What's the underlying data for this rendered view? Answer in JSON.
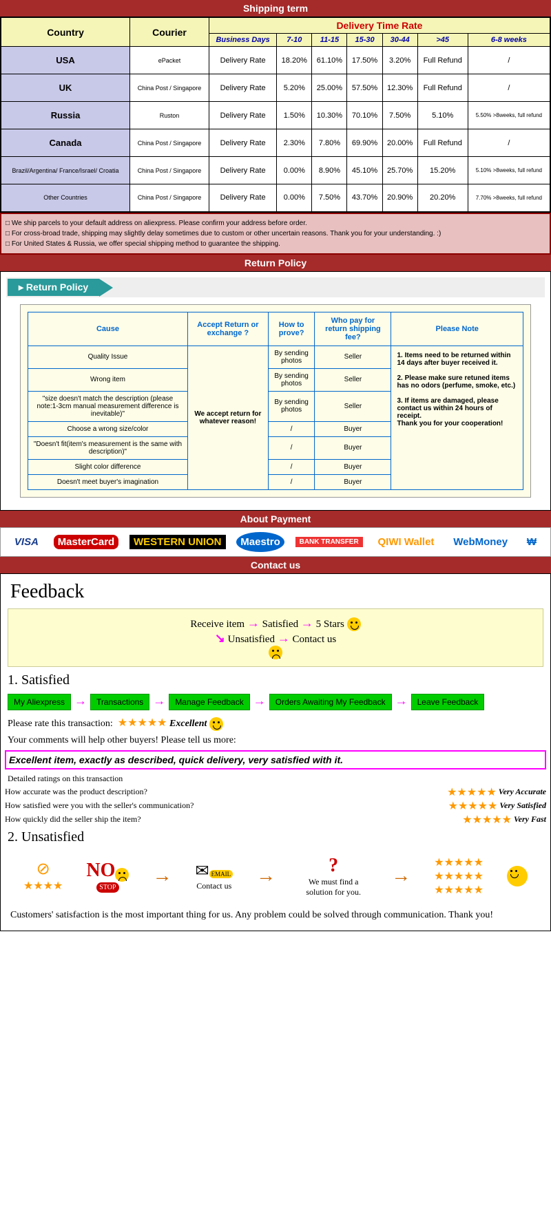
{
  "sections": {
    "shipping": "Shipping term",
    "return": "Return Policy",
    "payment": "About Payment",
    "contact": "Contact us"
  },
  "shipping": {
    "headers": {
      "country": "Country",
      "courier": "Courier",
      "delivery": "Delivery Time Rate"
    },
    "subheaders": [
      "Business Days",
      "7-10",
      "11-15",
      "15-30",
      "30-44",
      ">45",
      "6-8 weeks"
    ],
    "rate_label": "Delivery Rate",
    "rows": [
      {
        "country": "USA",
        "couriers": "ePacket",
        "rates": [
          "18.20%",
          "61.10%",
          "17.50%",
          "3.20%",
          "Full Refund",
          "/"
        ]
      },
      {
        "country": "UK",
        "couriers": "China Post / Singapore",
        "rates": [
          "5.20%",
          "25.00%",
          "57.50%",
          "12.30%",
          "Full Refund",
          "/"
        ]
      },
      {
        "country": "Russia",
        "couriers": "Ruston",
        "rates": [
          "1.50%",
          "10.30%",
          "70.10%",
          "7.50%",
          "5.10%",
          "5.50% >8weeks, full refund"
        ]
      },
      {
        "country": "Canada",
        "couriers": "China Post / Singapore",
        "rates": [
          "2.30%",
          "7.80%",
          "69.90%",
          "20.00%",
          "Full Refund",
          "/"
        ]
      },
      {
        "country": "Brazil/Argentina/ France/Israel/ Croatia",
        "couriers": "China Post / Singapore",
        "rates": [
          "0.00%",
          "8.90%",
          "45.10%",
          "25.70%",
          "15.20%",
          "5.10% >8weeks, full refund"
        ]
      },
      {
        "country": "Other Countries",
        "couriers": "China Post / Singapore",
        "rates": [
          "0.00%",
          "7.50%",
          "43.70%",
          "20.90%",
          "20.20%",
          "7.70% >8weeks, full refund"
        ]
      }
    ],
    "notes": [
      "We ship parcels to your default address on aliexpress. Please confirm your address before order.",
      "For cross-broad trade, shipping may slightly delay sometimes due to custom or other uncertain reasons. Thank you for your understanding. :)",
      "For United States & Russia, we offer special shipping method to guarantee the shipping."
    ]
  },
  "return": {
    "tab": "Return Policy",
    "headers": [
      "Cause",
      "Accept Return or exchange ?",
      "How to prove?",
      "Who pay for return shipping fee?",
      "Please Note"
    ],
    "accept_text": "We accept return for whatever reason!",
    "rows": [
      {
        "cause": "Quality Issue",
        "prove": "By sending photos",
        "who": "Seller"
      },
      {
        "cause": "Wrong item",
        "prove": "By sending photos",
        "who": "Seller"
      },
      {
        "cause": "\"size doesn't match the description (please note:1-3cm manual measurement difference is inevitable)\"",
        "prove": "By sending photos",
        "who": "Seller"
      },
      {
        "cause": "Choose a wrong size/color",
        "prove": "/",
        "who": "Buyer"
      },
      {
        "cause": "\"Doesn't fit(item's measurement is the same with description)\"",
        "prove": "/",
        "who": "Buyer"
      },
      {
        "cause": "Slight color difference",
        "prove": "/",
        "who": "Buyer"
      },
      {
        "cause": "Doesn't meet buyer's imagination",
        "prove": "/",
        "who": "Buyer"
      }
    ],
    "note": "1. Items need to be returned within 14 days after buyer received it.\n\n2. Please make sure retuned items has no odors (perfume, smoke, etc.)\n\n3. If items are damaged, please contact us within 24 hours of receipt.\nThank you for your cooperation!"
  },
  "payment": {
    "methods": [
      "VISA",
      "MasterCard",
      "WESTERN UNION",
      "Maestro",
      "BANK TRANSFER",
      "QIWI Wallet",
      "WebMoney",
      "₩"
    ]
  },
  "feedback": {
    "title": "Feedback",
    "flow": {
      "receive": "Receive item",
      "satisfied": "Satisfied",
      "stars": "5 Stars",
      "unsatisfied": "Unsatisfied",
      "contact": "Contact us"
    },
    "sat_title": "1. Satisfied",
    "sat_steps": [
      "My Aliexpress",
      "Transactions",
      "Manage Feedback",
      "Orders Awaiting My Feedback",
      "Leave Feedback"
    ],
    "rate_label": "Please rate this transaction:",
    "excellent": "Excellent",
    "comments_label": "Your comments will help other buyers! Please tell us more:",
    "comment_text": "Excellent item, exactly as described, quick delivery, very satisfied with it.",
    "detail_title": "Detailed ratings on this transaction",
    "detail_rows": [
      {
        "q": "How accurate was the product description?",
        "a": "Very Accurate"
      },
      {
        "q": "How satisfied were you with the seller's communication?",
        "a": "Very Satisfied"
      },
      {
        "q": "How quickly did the seller ship the item?",
        "a": "Very Fast"
      }
    ],
    "unsat_title": "2. Unsatisfied",
    "unsat": {
      "no": "NO",
      "stop": "STOP",
      "email": "EMAIL",
      "contact": "Contact us",
      "solution": "We must find a solution for you."
    },
    "closing": "Customers' satisfaction is the most important thing for us. Any problem could be solved through communication. Thank you!"
  },
  "colors": {
    "header": "#a52a2a",
    "cream": "#f5f5b8",
    "lav": "#c8c8e8",
    "pink": "#e8c0c0",
    "teal": "#2a9a9a",
    "green": "#00cc00",
    "magenta": "#ff00ff",
    "star": "#ff9900"
  }
}
